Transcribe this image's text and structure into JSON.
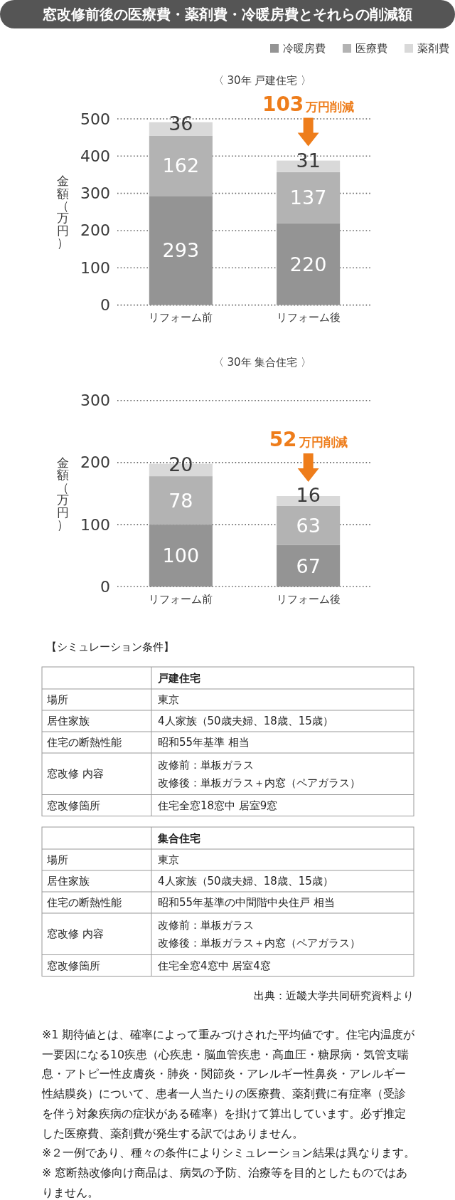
{
  "chart_data": [
    {
      "type": "bar",
      "title": "窓改修前後の医療費・薬剤費・冷暖房費とそれらの削減額",
      "subtitle": "〈 30年 戸建住宅 〉",
      "ylabel": "金額（万円）",
      "categories": [
        "リフォーム前",
        "リフォーム後"
      ],
      "stacked": true,
      "series": [
        {
          "name": "冷暖房費",
          "color": "#949494",
          "values": [
            293,
            220
          ]
        },
        {
          "name": "医療費",
          "color": "#b3b3b3",
          "values": [
            162,
            137
          ]
        },
        {
          "name": "薬剤費",
          "color": "#d9d9d9",
          "values": [
            36,
            31
          ]
        }
      ],
      "ylim": [
        0,
        500
      ],
      "yticks": [
        0,
        100,
        200,
        300,
        400,
        500
      ],
      "grid": "y",
      "legend": "top right",
      "data_labels": true,
      "annotations": [
        {
          "text": "103万円削減",
          "x": "リフォーム後",
          "y": 388
        }
      ]
    },
    {
      "type": "bar",
      "subtitle": "〈 30年 集合住宅 〉",
      "ylabel": "金額（万円）",
      "categories": [
        "リフォーム前",
        "リフォーム後"
      ],
      "stacked": true,
      "series": [
        {
          "color": "#949494",
          "values": [
            100,
            67
          ]
        },
        {
          "color": "#b3b3b3",
          "values": [
            78,
            63
          ]
        },
        {
          "color": "#d9d9d9",
          "values": [
            20,
            16
          ]
        }
      ],
      "ylim": [
        0,
        300
      ],
      "yticks": [
        0,
        100,
        200,
        300
      ],
      "grid": "y",
      "data_labels": true,
      "annotations": [
        {
          "text": "52万円削減",
          "x": "リフォーム後",
          "y": 146
        }
      ]
    },
    {
      "type": "other",
      "title": "【シミュレーション条件】",
      "categories": [
        "戸建住宅"
      ],
      "y_categories": [
        "場所",
        "居住家族",
        "住宅の断熱性能",
        "窓改修 内容",
        "窓改修箇所"
      ],
      "cell_labels": [
        [
          "東京"
        ],
        [
          "4人家族（50歳夫婦、18歳、15歳）"
        ],
        [
          "昭和55年基準 相当"
        ],
        [
          [
            "改修前：単板ガラス",
            "改修後：単板ガラス＋内窓（ペアガラス）"
          ]
        ],
        [
          "住宅全窓18窓中 居室9窓"
        ]
      ]
    },
    {
      "type": "other",
      "categories": [
        "集合住宅"
      ],
      "y_categories": [
        "場所",
        "居住家族",
        "住宅の断熱性能",
        "窓改修 内容",
        "窓改修箇所"
      ],
      "cell_labels": [
        [
          "東京"
        ],
        [
          "4人家族（50歳夫婦、18歳、15歳）"
        ],
        [
          "昭和55年基準の中間階中央住戸 相当"
        ],
        [
          [
            "改修前：単板ガラス",
            "改修後：単板ガラス＋内窓（ペアガラス）"
          ]
        ],
        [
          "住宅全窓4窓中 居室4窓"
        ]
      ],
      "annotations": [
        "出典：近畿大学共同研究資料より"
      ]
    },
    {
      "type": "other",
      "annotations": [
        "※1 期待値とは、確率によって重みづけされた平均値です。住宅内温度が一要因になる10疾患（心疾患・脳血管疾患・高血圧・糖尿病・気管支喘息・アトピー性皮膚炎・肺炎・関節炎・アレルギー性鼻炎・アレルギー性結膜炎）について、患者一人当たりの医療費、薬剤費に有症率（受診を伴う対象疾病の症状がある確率）を掛けて算出しています。必ず推定した医療費、薬剤費が発生する訳ではありません。",
        "※２一例であり、種々の条件によりシミュレーション結果は異なります。",
        "※ 窓断熱改修向け商品は、病気の予防、治療等を目的としたものではありません。"
      ]
    }
  ]
}
